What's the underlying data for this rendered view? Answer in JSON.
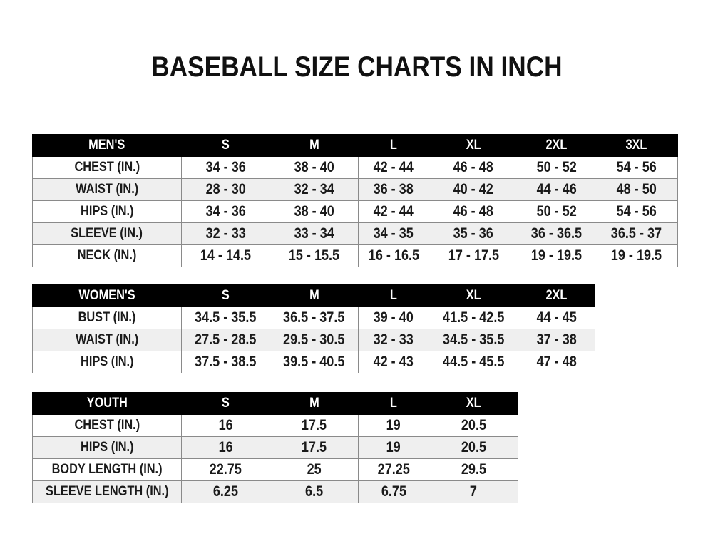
{
  "title": "BASEBALL SIZE CHARTS IN INCH",
  "colors": {
    "header_bg": "#000000",
    "header_text": "#ffffff",
    "alt_row": "#efefef"
  },
  "tables": [
    {
      "header": [
        "MEN'S",
        "S",
        "M",
        "L",
        "XL",
        "2XL",
        "3XL"
      ],
      "rows": [
        [
          "CHEST (IN.)",
          "34 - 36",
          "38 - 40",
          "42 - 44",
          "46 - 48",
          "50 - 52",
          "54 - 56"
        ],
        [
          "WAIST (IN.)",
          "28 - 30",
          "32 - 34",
          "36 - 38",
          "40 - 42",
          "44 - 46",
          "48 - 50"
        ],
        [
          "HIPS (IN.)",
          "34 - 36",
          "38 - 40",
          "42 - 44",
          "46 - 48",
          "50 - 52",
          "54 - 56"
        ],
        [
          "SLEEVE (IN.)",
          "32 - 33",
          "33 - 34",
          "34 - 35",
          "35 - 36",
          "36 - 36.5",
          "36.5 - 37"
        ],
        [
          "NECK (IN.)",
          "14 - 14.5",
          "15 - 15.5",
          "16 - 16.5",
          "17 - 17.5",
          "19 - 19.5",
          "19 - 19.5"
        ]
      ]
    },
    {
      "header": [
        "WOMEN'S",
        "S",
        "M",
        "L",
        "XL",
        "2XL"
      ],
      "rows": [
        [
          "BUST (IN.)",
          "34.5 - 35.5",
          "36.5 - 37.5",
          "39 - 40",
          "41.5 - 42.5",
          "44 - 45"
        ],
        [
          "WAIST (IN.)",
          "27.5 - 28.5",
          "29.5 - 30.5",
          "32 - 33",
          "34.5 - 35.5",
          "37 - 38"
        ],
        [
          "HIPS (IN.)",
          "37.5 - 38.5",
          "39.5 - 40.5",
          "42 - 43",
          "44.5 - 45.5",
          "47 - 48"
        ]
      ]
    },
    {
      "header": [
        "YOUTH",
        "S",
        "M",
        "L",
        "XL"
      ],
      "rows": [
        [
          "CHEST (IN.)",
          "16",
          "17.5",
          "19",
          "20.5"
        ],
        [
          "HIPS (IN.)",
          "16",
          "17.5",
          "19",
          "20.5"
        ],
        [
          "BODY LENGTH (IN.)",
          "22.75",
          "25",
          "27.25",
          "29.5"
        ],
        [
          "SLEEVE LENGTH (IN.)",
          "6.25",
          "6.5",
          "6.75",
          "7"
        ]
      ]
    }
  ]
}
